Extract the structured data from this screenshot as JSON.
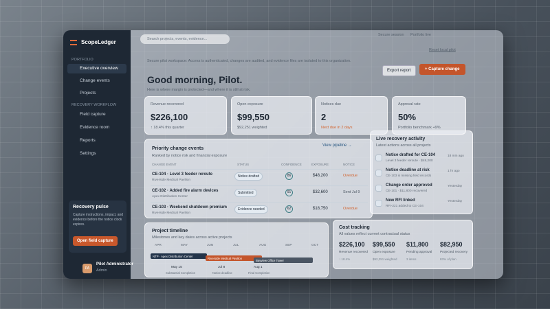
{
  "sidebar": {
    "brand": "ScopeLedger",
    "section1": "PORTFOLIO",
    "nav1": [
      "Executive overview",
      "Change events",
      "Projects"
    ],
    "section2": "RECOVERY WORKFLOW",
    "nav2": [
      "Field capture",
      "Evidence room",
      "Reports",
      "Settings"
    ],
    "pulse": {
      "title": "Recovery pulse",
      "text": "Capture instructions, impact, and evidence before the notice clock expires.",
      "button": "Open field capture"
    },
    "user": {
      "initials": "PA",
      "name": "Pilot Administrator",
      "role": "Admin"
    }
  },
  "topbar": {
    "search": "Search projects, events, evidence...",
    "status1": "Secure session",
    "status2": "Portfolio live"
  },
  "banner": {
    "text": "Secure pilot workspace: Access is authenticated, changes are audited, and evidence files are isolated to this organization.",
    "link": "Reset local pilot"
  },
  "header": {
    "title": "Good morning, Pilot.",
    "subtitle": "Here is where margin is protected—and where it is still at risk.",
    "export": "Export report",
    "capture": "+ Capture change"
  },
  "kpis": [
    {
      "label": "Revenue recovered",
      "value": "$226,100",
      "note": "↑ 18.4% this quarter"
    },
    {
      "label": "Open exposure",
      "value": "$99,550",
      "note": "$92,251 weighted"
    },
    {
      "label": "Notices due",
      "value": "2",
      "note": "Next due in 2 days"
    },
    {
      "label": "Approval rate",
      "value": "50%",
      "note": "Portfolio benchmark +9%"
    }
  ],
  "priority": {
    "title": "Priority change events",
    "subtitle": "Ranked by notice risk and financial exposure",
    "link": "View pipeline →",
    "columns": [
      "CHANGE EVENT",
      "STATUS",
      "CONFIDENCE",
      "EXPOSURE",
      "NOTICE"
    ],
    "rows": [
      [
        "CE-104 · Level 3 feeder reroute",
        "Riverside Medical Pavilion",
        "Notice drafted",
        86,
        "$48,200",
        "Overdue"
      ],
      [
        "CE-102 · Added fire alarm devices",
        "Apex Distribution Center",
        "Submitted",
        91,
        "$32,600",
        "Sent Jul 9"
      ],
      [
        "CE-103 · Weekend shutdown premium",
        "Riverside Medical Pavilion",
        "Evidence needed",
        62,
        "$18,750",
        "Overdue"
      ]
    ]
  },
  "activity": {
    "title": "Live recovery activity",
    "subtitle": "Latest actions across all projects",
    "items": [
      [
        "Notice drafted for CE-104",
        "Level 3 feeder reroute · $48,200",
        "18 min ago"
      ],
      [
        "Notice deadline at risk",
        "CE-103 is missing field records",
        "1 hr ago"
      ],
      [
        "Change order approved",
        "CE-101 · $11,800 recovered",
        "Yesterday"
      ],
      [
        "New RFI linked",
        "RFI-221 added to CE-104",
        "Yesterday"
      ]
    ]
  },
  "timeline": {
    "title": "Project timeline",
    "subtitle": "Milestones and key dates across active projects",
    "months": [
      "APR",
      "MAY",
      "JUN",
      "JUL",
      "AUG",
      "SEP",
      "OCT"
    ],
    "bars": [
      "NTP · Apex Distribution Center",
      "Riverside Medical Pavilion",
      "Bayview Office Tower"
    ],
    "milestones": [
      [
        "May 15",
        "Substantial Completion"
      ],
      [
        "Jul 8",
        "Notice deadline"
      ],
      [
        "Aug 1",
        "Final Completion"
      ]
    ]
  },
  "cost": {
    "title": "Cost tracking",
    "subtitle": "All values reflect current contractual status",
    "items": [
      [
        "$226,100",
        "Revenue recovered",
        "↑ 18.4%"
      ],
      [
        "$99,550",
        "Open exposure",
        "$92,251 weighted"
      ],
      [
        "$11,800",
        "Pending approval",
        "3 items"
      ],
      [
        "$82,950",
        "Projected recovery",
        "83% of plan"
      ]
    ]
  }
}
